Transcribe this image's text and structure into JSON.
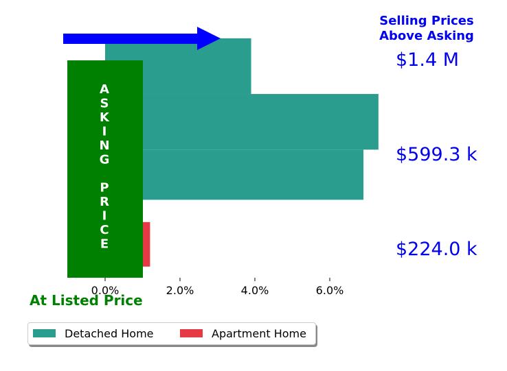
{
  "header": {
    "line1": "Selling Prices",
    "line2": "Above Asking"
  },
  "price_labels": [
    "$1.4 M",
    "$599.3 k",
    "$224.0 k"
  ],
  "footer_label": "At Listed Price",
  "asking_price_letters": [
    "A",
    "S",
    "K",
    "I",
    "N",
    "G",
    "",
    "P",
    "R",
    "I",
    "C",
    "E"
  ],
  "legend": [
    {
      "label": "Detached Home",
      "color": "#2a9d8f"
    },
    {
      "label": "Apartment Home",
      "color": "#e63946"
    }
  ],
  "colors": {
    "arrow": "#0000ff",
    "asking_box": "#008000",
    "header_text": "#0000ee"
  },
  "chart_data": {
    "type": "bar",
    "orientation": "horizontal",
    "xlim": [
      -1.0,
      7.3
    ],
    "x_ticks": [
      0,
      2,
      4,
      6
    ],
    "x_tick_labels": [
      "0.0%",
      "2.0%",
      "4.0%",
      "6.0%"
    ],
    "grid": false,
    "legend_position": "bottom-left",
    "series": [
      {
        "name": "Detached Home",
        "color": "#2a9d8f",
        "bars": [
          {
            "value": 3.9,
            "y_low": 3.3,
            "y_high": 4.3
          },
          {
            "value": 7.3,
            "y_low": 2.3,
            "y_high": 3.3
          },
          {
            "value": 6.9,
            "y_low": 1.4,
            "y_high": 2.3
          }
        ]
      },
      {
        "name": "Apartment Home",
        "color": "#e63946",
        "bars": [
          {
            "value": 1.2,
            "y_low": 0.2,
            "y_high": 1.0
          }
        ]
      }
    ]
  }
}
